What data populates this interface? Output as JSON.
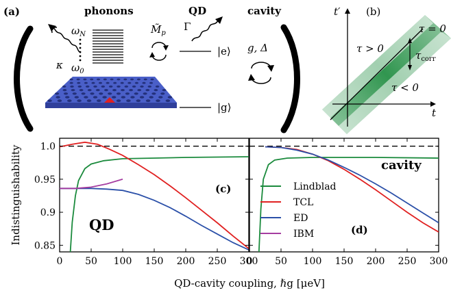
{
  "panel_a": {
    "label": "(a)",
    "phonons_title": "phonons",
    "qd_title": "QD",
    "cavity_title": "cavity",
    "omega_n": "ωN",
    "omega_0": "ω0",
    "coupling_m": "M̃p",
    "gamma": "Γ",
    "kappa": "κ",
    "state_e": "|e⟩",
    "state_g": "|g⟩",
    "g_delta": "g,  Δ"
  },
  "panel_b": {
    "label": "(b)",
    "t_prime": "t′",
    "t_axis": "t",
    "tau_zero": "τ = 0",
    "tau_pos": "τ > 0",
    "tau_neg": "τ < 0",
    "tau_corr": "τcorr"
  },
  "colors": {
    "lindblad": "#1a8a3c",
    "tcl": "#e02020",
    "ed": "#2a4fa8",
    "ibm": "#a53ca0",
    "lattice": "#4a5fc8"
  },
  "chart_data": [
    {
      "panel": "(c)",
      "type": "line",
      "title": "QD",
      "ylabel": "Indistinguishability",
      "xlabel": "QD-cavity coupling, ℏg [μeV]",
      "xlim": [
        0,
        300
      ],
      "ylim": [
        0.84,
        1.012
      ],
      "xticks": [
        "0",
        "50",
        "100",
        "150",
        "200",
        "250",
        "300"
      ],
      "yticks": [
        "0.85",
        "0.9",
        "0.95",
        "1.0"
      ],
      "reference_line": 1.0,
      "series": [
        {
          "name": "Lindblad",
          "x": [
            17,
            20,
            25,
            30,
            40,
            50,
            70,
            100,
            150,
            200,
            300
          ],
          "y": [
            0.84,
            0.885,
            0.925,
            0.948,
            0.966,
            0.973,
            0.978,
            0.981,
            0.982,
            0.983,
            0.984
          ]
        },
        {
          "name": "TCL",
          "x": [
            0,
            20,
            40,
            60,
            80,
            100,
            125,
            150,
            175,
            200,
            225,
            250,
            275,
            300
          ],
          "y": [
            0.999,
            1.003,
            1.006,
            1.003,
            0.995,
            0.986,
            0.972,
            0.957,
            0.94,
            0.922,
            0.903,
            0.884,
            0.864,
            0.845
          ]
        },
        {
          "name": "ED",
          "x": [
            0,
            25,
            50,
            75,
            100,
            125,
            150,
            175,
            200,
            225,
            250,
            275,
            300
          ],
          "y": [
            0.936,
            0.936,
            0.936,
            0.935,
            0.933,
            0.927,
            0.918,
            0.907,
            0.894,
            0.88,
            0.867,
            0.854,
            0.843
          ]
        },
        {
          "name": "IBM",
          "x": [
            0,
            25,
            50,
            75,
            100
          ],
          "y": [
            0.936,
            0.936,
            0.938,
            0.943,
            0.95
          ]
        }
      ]
    },
    {
      "panel": "(d)",
      "type": "line",
      "title": "cavity",
      "xlim": [
        0,
        300
      ],
      "ylim": [
        0.84,
        1.012
      ],
      "xticks": [
        "0",
        "50",
        "100",
        "150",
        "200",
        "250",
        "300"
      ],
      "reference_line": 1.0,
      "legend": [
        "Lindblad",
        "TCL",
        "ED",
        "IBM"
      ],
      "series": [
        {
          "name": "Lindblad",
          "x": [
            15,
            18,
            22,
            30,
            40,
            60,
            100,
            150,
            200,
            300
          ],
          "y": [
            0.84,
            0.905,
            0.95,
            0.972,
            0.979,
            0.982,
            0.983,
            0.983,
            0.983,
            0.982
          ]
        },
        {
          "name": "TCL",
          "x": [
            25,
            50,
            75,
            100,
            125,
            150,
            175,
            200,
            225,
            250,
            275,
            300
          ],
          "y": [
            0.999,
            0.998,
            0.995,
            0.988,
            0.978,
            0.965,
            0.95,
            0.934,
            0.917,
            0.9,
            0.884,
            0.87
          ]
        },
        {
          "name": "ED",
          "x": [
            25,
            50,
            75,
            100,
            125,
            150,
            175,
            200,
            225,
            250,
            275,
            300
          ],
          "y": [
            0.999,
            0.998,
            0.994,
            0.988,
            0.979,
            0.968,
            0.956,
            0.943,
            0.929,
            0.914,
            0.899,
            0.884
          ]
        }
      ]
    }
  ]
}
